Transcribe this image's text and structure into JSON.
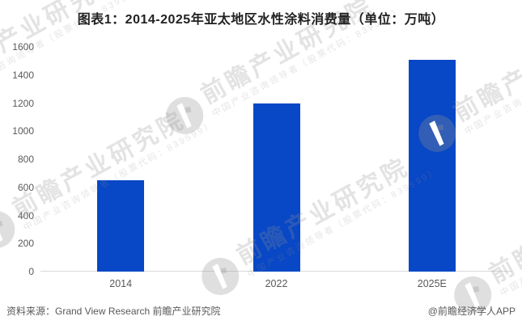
{
  "page": {
    "title": "图表1：2014-2025年亚太地区水性涂料消费量（单位：万吨）",
    "footer": {
      "source": "资料来源：Grand View Research  前瞻产业研究院",
      "credit": "@前瞻经济学人APP"
    }
  },
  "watermark": {
    "title": "前瞻产业研究院",
    "subtitle": "中国产业咨询领导者（股票代码：839599）"
  },
  "chart_data": {
    "type": "bar",
    "title": "图表1：2014-2025年亚太地区水性涂料消费量（单位：万吨）",
    "categories": [
      "2014",
      "2022",
      "2025E"
    ],
    "values": [
      650,
      1200,
      1510
    ],
    "xlabel": "",
    "ylabel": "万吨",
    "ylim": [
      0,
      1600
    ],
    "ytick_step": 200,
    "grid": false,
    "legend": "none",
    "bar_color": "#0847C5",
    "axis_line_color": "#d9d9d9",
    "tick_label_color": "#595959"
  }
}
